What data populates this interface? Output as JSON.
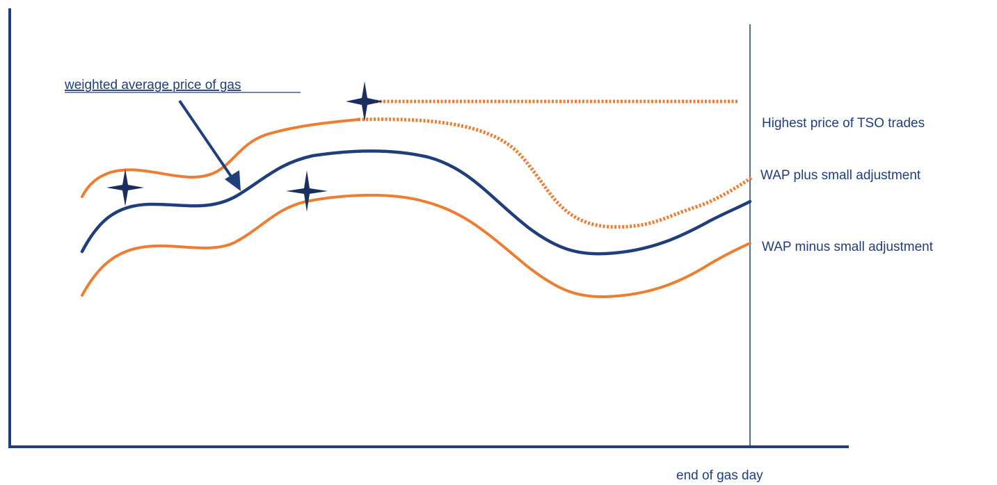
{
  "annotation": {
    "wap_callout": "weighted average price of gas"
  },
  "series_labels": {
    "highest": "Highest price of TSO trades",
    "wap_plus": "WAP plus small adjustment",
    "wap_minus": "WAP minus small adjustment"
  },
  "axis": {
    "end_marker_label": "end of gas day"
  },
  "colors": {
    "axis": "#1f3f7a",
    "wap_line": "#1f3f7a",
    "band_line": "#ed7d31",
    "star": "#1b2f5e",
    "label_text": "#1f3f7a"
  }
}
